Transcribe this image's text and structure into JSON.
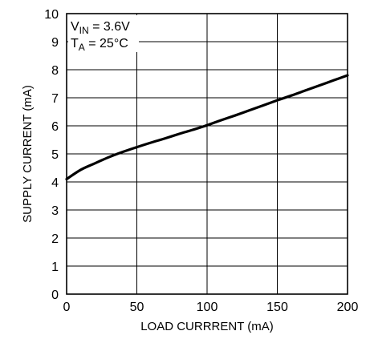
{
  "chart_data": {
    "type": "line",
    "xlabel": "LOAD CURRRENT (mA)",
    "ylabel": "SUPPLY CURRENT (mA)",
    "xlim": [
      0,
      200
    ],
    "ylim": [
      0,
      10
    ],
    "xticks": [
      "0",
      "50",
      "100",
      "150",
      "200"
    ],
    "yticks": [
      "0",
      "1",
      "2",
      "3",
      "4",
      "5",
      "6",
      "7",
      "8",
      "9",
      "10"
    ],
    "grid": true,
    "annotations": [
      {
        "main": "V",
        "sub": "IN",
        "rest": " = 3.6V"
      },
      {
        "main": "T",
        "sub": "A",
        "rest": " = 25°C"
      }
    ],
    "series": [
      {
        "x": [
          0,
          10,
          20,
          30,
          40,
          50,
          60,
          70,
          80,
          90,
          100,
          110,
          120,
          130,
          140,
          150,
          160,
          170,
          180,
          190,
          200
        ],
        "y": [
          4.1,
          4.43,
          4.66,
          4.88,
          5.07,
          5.24,
          5.4,
          5.55,
          5.71,
          5.86,
          6.02,
          6.2,
          6.37,
          6.55,
          6.73,
          6.91,
          7.08,
          7.26,
          7.44,
          7.62,
          7.8
        ]
      }
    ]
  }
}
